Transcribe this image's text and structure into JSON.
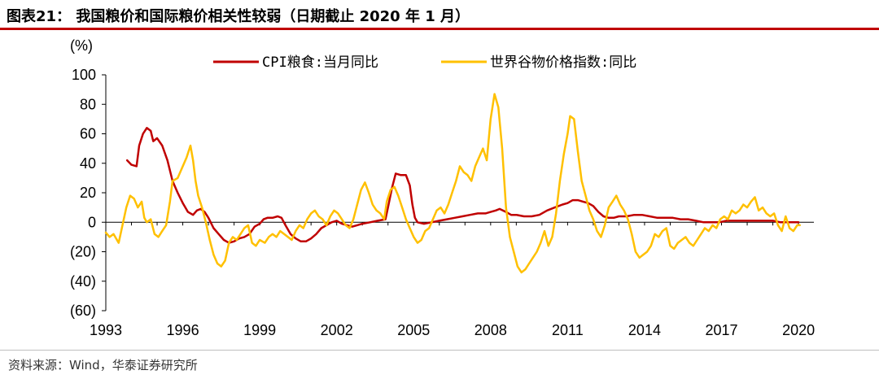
{
  "header": {
    "title": "图表21：  我国粮价和国际粮价相关性较弱（日期截止 2020 年 1 月）"
  },
  "source": {
    "text": "资料来源：Wind，华泰证券研究所"
  },
  "chart_data": {
    "type": "line",
    "unit_label": "(%)",
    "ylim": [
      -60,
      100
    ],
    "y_ticks": [
      -60,
      -40,
      -20,
      0,
      20,
      40,
      60,
      80,
      100
    ],
    "y_tick_labels": [
      "(60)",
      "(40)",
      "(20)",
      "0",
      "20",
      "40",
      "60",
      "80",
      "100"
    ],
    "x_ticks": [
      1993,
      1996,
      1999,
      2002,
      2005,
      2008,
      2011,
      2014,
      2017,
      2020
    ],
    "xlim": [
      1993,
      2020.6
    ],
    "legend_position": "top",
    "grid": false,
    "series": [
      {
        "name": "CPI粮食:当月同比",
        "color": "#c00000",
        "points": [
          [
            1993.83,
            42
          ],
          [
            1994.0,
            39
          ],
          [
            1994.2,
            38
          ],
          [
            1994.3,
            52
          ],
          [
            1994.45,
            60
          ],
          [
            1994.6,
            64
          ],
          [
            1994.75,
            62
          ],
          [
            1994.85,
            55
          ],
          [
            1995.0,
            57
          ],
          [
            1995.2,
            52
          ],
          [
            1995.4,
            42
          ],
          [
            1995.6,
            28
          ],
          [
            1995.8,
            20
          ],
          [
            1996.0,
            13
          ],
          [
            1996.2,
            7
          ],
          [
            1996.4,
            5
          ],
          [
            1996.55,
            8
          ],
          [
            1996.7,
            9
          ],
          [
            1996.85,
            7
          ],
          [
            1997.0,
            3
          ],
          [
            1997.2,
            -4
          ],
          [
            1997.4,
            -8
          ],
          [
            1997.6,
            -12
          ],
          [
            1997.8,
            -14
          ],
          [
            1998.0,
            -13
          ],
          [
            1998.2,
            -11
          ],
          [
            1998.4,
            -10
          ],
          [
            1998.6,
            -8
          ],
          [
            1998.8,
            -3
          ],
          [
            1999.0,
            -1
          ],
          [
            1999.15,
            2
          ],
          [
            1999.3,
            3
          ],
          [
            1999.5,
            3
          ],
          [
            1999.7,
            4
          ],
          [
            1999.85,
            3
          ],
          [
            2000.0,
            -2
          ],
          [
            2000.2,
            -8
          ],
          [
            2000.4,
            -11
          ],
          [
            2000.6,
            -13
          ],
          [
            2000.8,
            -13
          ],
          [
            2001.0,
            -11
          ],
          [
            2001.2,
            -8
          ],
          [
            2001.4,
            -4
          ],
          [
            2001.6,
            -2
          ],
          [
            2001.8,
            0
          ],
          [
            2002.0,
            1
          ],
          [
            2002.2,
            -1
          ],
          [
            2002.4,
            -2
          ],
          [
            2002.6,
            -3
          ],
          [
            2002.8,
            -2
          ],
          [
            2003.0,
            -1
          ],
          [
            2003.3,
            0
          ],
          [
            2003.6,
            1
          ],
          [
            2003.9,
            2
          ],
          [
            2004.0,
            10
          ],
          [
            2004.15,
            23
          ],
          [
            2004.3,
            33
          ],
          [
            2004.5,
            32
          ],
          [
            2004.7,
            32
          ],
          [
            2004.85,
            25
          ],
          [
            2004.95,
            12
          ],
          [
            2005.05,
            3
          ],
          [
            2005.15,
            0
          ],
          [
            2005.4,
            -1
          ],
          [
            2005.7,
            0
          ],
          [
            2006.0,
            1
          ],
          [
            2006.3,
            2
          ],
          [
            2006.6,
            3
          ],
          [
            2006.9,
            4
          ],
          [
            2007.2,
            5
          ],
          [
            2007.5,
            6
          ],
          [
            2007.8,
            6
          ],
          [
            2008.0,
            7
          ],
          [
            2008.2,
            8
          ],
          [
            2008.35,
            9
          ],
          [
            2008.6,
            7
          ],
          [
            2008.8,
            5
          ],
          [
            2009.0,
            5
          ],
          [
            2009.3,
            4
          ],
          [
            2009.6,
            4
          ],
          [
            2009.9,
            5
          ],
          [
            2010.2,
            8
          ],
          [
            2010.5,
            10
          ],
          [
            2010.8,
            12
          ],
          [
            2011.0,
            13
          ],
          [
            2011.2,
            15
          ],
          [
            2011.4,
            15
          ],
          [
            2011.6,
            14
          ],
          [
            2011.8,
            13
          ],
          [
            2012.0,
            11
          ],
          [
            2012.2,
            7
          ],
          [
            2012.4,
            4
          ],
          [
            2012.6,
            3
          ],
          [
            2012.8,
            3
          ],
          [
            2013.0,
            4
          ],
          [
            2013.3,
            4
          ],
          [
            2013.6,
            5
          ],
          [
            2013.9,
            5
          ],
          [
            2014.2,
            4
          ],
          [
            2014.5,
            3
          ],
          [
            2014.8,
            3
          ],
          [
            2015.1,
            3
          ],
          [
            2015.4,
            2
          ],
          [
            2015.7,
            2
          ],
          [
            2016.0,
            1
          ],
          [
            2016.3,
            0
          ],
          [
            2016.6,
            0
          ],
          [
            2016.9,
            0
          ],
          [
            2017.2,
            1
          ],
          [
            2017.5,
            1
          ],
          [
            2017.8,
            1
          ],
          [
            2018.1,
            1
          ],
          [
            2018.4,
            1
          ],
          [
            2018.7,
            1
          ],
          [
            2019.0,
            1
          ],
          [
            2019.3,
            0
          ],
          [
            2019.6,
            0
          ],
          [
            2019.9,
            0
          ],
          [
            2020.0,
            0
          ]
        ]
      },
      {
        "name": "世界谷物价格指数:同比",
        "color": "#ffc000",
        "points": [
          [
            1993.0,
            -7
          ],
          [
            1993.15,
            -10
          ],
          [
            1993.3,
            -8
          ],
          [
            1993.5,
            -14
          ],
          [
            1993.65,
            -2
          ],
          [
            1993.8,
            10
          ],
          [
            1993.95,
            18
          ],
          [
            1994.1,
            16
          ],
          [
            1994.25,
            10
          ],
          [
            1994.4,
            14
          ],
          [
            1994.5,
            3
          ],
          [
            1994.6,
            0
          ],
          [
            1994.75,
            2
          ],
          [
            1994.9,
            -8
          ],
          [
            1995.05,
            -10
          ],
          [
            1995.2,
            -6
          ],
          [
            1995.35,
            -2
          ],
          [
            1995.5,
            14
          ],
          [
            1995.6,
            28
          ],
          [
            1995.8,
            30
          ],
          [
            1996.0,
            38
          ],
          [
            1996.15,
            44
          ],
          [
            1996.3,
            52
          ],
          [
            1996.4,
            42
          ],
          [
            1996.5,
            28
          ],
          [
            1996.6,
            18
          ],
          [
            1996.75,
            10
          ],
          [
            1996.9,
            0
          ],
          [
            1997.05,
            -12
          ],
          [
            1997.2,
            -22
          ],
          [
            1997.35,
            -28
          ],
          [
            1997.5,
            -30
          ],
          [
            1997.65,
            -26
          ],
          [
            1997.8,
            -14
          ],
          [
            1997.95,
            -10
          ],
          [
            1998.1,
            -12
          ],
          [
            1998.25,
            -8
          ],
          [
            1998.4,
            -4
          ],
          [
            1998.55,
            -2
          ],
          [
            1998.7,
            -14
          ],
          [
            1998.85,
            -16
          ],
          [
            1999.0,
            -12
          ],
          [
            1999.2,
            -14
          ],
          [
            1999.35,
            -10
          ],
          [
            1999.5,
            -8
          ],
          [
            1999.65,
            -10
          ],
          [
            1999.8,
            -6
          ],
          [
            1999.95,
            -8
          ],
          [
            2000.1,
            -10
          ],
          [
            2000.25,
            -12
          ],
          [
            2000.4,
            -6
          ],
          [
            2000.55,
            -2
          ],
          [
            2000.7,
            -4
          ],
          [
            2000.85,
            2
          ],
          [
            2001.0,
            6
          ],
          [
            2001.15,
            8
          ],
          [
            2001.3,
            4
          ],
          [
            2001.45,
            2
          ],
          [
            2001.6,
            -2
          ],
          [
            2001.75,
            4
          ],
          [
            2001.9,
            8
          ],
          [
            2002.05,
            6
          ],
          [
            2002.2,
            2
          ],
          [
            2002.35,
            -2
          ],
          [
            2002.5,
            -4
          ],
          [
            2002.65,
            2
          ],
          [
            2002.8,
            12
          ],
          [
            2002.95,
            22
          ],
          [
            2003.1,
            27
          ],
          [
            2003.25,
            20
          ],
          [
            2003.4,
            12
          ],
          [
            2003.55,
            8
          ],
          [
            2003.7,
            6
          ],
          [
            2003.85,
            2
          ],
          [
            2003.95,
            14
          ],
          [
            2004.1,
            22
          ],
          [
            2004.25,
            24
          ],
          [
            2004.4,
            18
          ],
          [
            2004.55,
            10
          ],
          [
            2004.7,
            2
          ],
          [
            2004.85,
            -4
          ],
          [
            2005.0,
            -10
          ],
          [
            2005.15,
            -14
          ],
          [
            2005.3,
            -12
          ],
          [
            2005.45,
            -6
          ],
          [
            2005.6,
            -4
          ],
          [
            2005.75,
            2
          ],
          [
            2005.9,
            8
          ],
          [
            2006.05,
            10
          ],
          [
            2006.2,
            6
          ],
          [
            2006.35,
            12
          ],
          [
            2006.5,
            20
          ],
          [
            2006.65,
            28
          ],
          [
            2006.8,
            38
          ],
          [
            2006.95,
            34
          ],
          [
            2007.1,
            32
          ],
          [
            2007.25,
            28
          ],
          [
            2007.4,
            38
          ],
          [
            2007.55,
            44
          ],
          [
            2007.7,
            50
          ],
          [
            2007.85,
            42
          ],
          [
            2008.0,
            70
          ],
          [
            2008.15,
            87
          ],
          [
            2008.3,
            78
          ],
          [
            2008.45,
            50
          ],
          [
            2008.6,
            10
          ],
          [
            2008.75,
            -10
          ],
          [
            2008.9,
            -20
          ],
          [
            2009.05,
            -30
          ],
          [
            2009.2,
            -34
          ],
          [
            2009.35,
            -32
          ],
          [
            2009.5,
            -28
          ],
          [
            2009.65,
            -24
          ],
          [
            2009.8,
            -20
          ],
          [
            2009.95,
            -14
          ],
          [
            2010.1,
            -6
          ],
          [
            2010.25,
            -16
          ],
          [
            2010.4,
            -10
          ],
          [
            2010.55,
            6
          ],
          [
            2010.7,
            28
          ],
          [
            2010.85,
            46
          ],
          [
            2011.0,
            60
          ],
          [
            2011.1,
            72
          ],
          [
            2011.25,
            70
          ],
          [
            2011.4,
            48
          ],
          [
            2011.55,
            28
          ],
          [
            2011.7,
            18
          ],
          [
            2011.85,
            8
          ],
          [
            2012.0,
            2
          ],
          [
            2012.15,
            -6
          ],
          [
            2012.3,
            -10
          ],
          [
            2012.45,
            -2
          ],
          [
            2012.6,
            10
          ],
          [
            2012.75,
            14
          ],
          [
            2012.9,
            18
          ],
          [
            2013.05,
            12
          ],
          [
            2013.2,
            8
          ],
          [
            2013.35,
            2
          ],
          [
            2013.5,
            -8
          ],
          [
            2013.65,
            -20
          ],
          [
            2013.8,
            -24
          ],
          [
            2013.95,
            -22
          ],
          [
            2014.1,
            -20
          ],
          [
            2014.25,
            -16
          ],
          [
            2014.4,
            -8
          ],
          [
            2014.55,
            -10
          ],
          [
            2014.7,
            -6
          ],
          [
            2014.85,
            -4
          ],
          [
            2015.0,
            -16
          ],
          [
            2015.15,
            -18
          ],
          [
            2015.3,
            -14
          ],
          [
            2015.45,
            -12
          ],
          [
            2015.6,
            -10
          ],
          [
            2015.75,
            -14
          ],
          [
            2015.9,
            -16
          ],
          [
            2016.05,
            -12
          ],
          [
            2016.2,
            -8
          ],
          [
            2016.35,
            -4
          ],
          [
            2016.5,
            -6
          ],
          [
            2016.65,
            -2
          ],
          [
            2016.8,
            -4
          ],
          [
            2016.95,
            2
          ],
          [
            2017.1,
            4
          ],
          [
            2017.25,
            2
          ],
          [
            2017.4,
            8
          ],
          [
            2017.55,
            6
          ],
          [
            2017.7,
            8
          ],
          [
            2017.85,
            12
          ],
          [
            2018.0,
            10
          ],
          [
            2018.15,
            14
          ],
          [
            2018.3,
            17
          ],
          [
            2018.45,
            8
          ],
          [
            2018.6,
            10
          ],
          [
            2018.75,
            6
          ],
          [
            2018.9,
            4
          ],
          [
            2019.05,
            6
          ],
          [
            2019.2,
            -2
          ],
          [
            2019.35,
            -6
          ],
          [
            2019.5,
            4
          ],
          [
            2019.65,
            -4
          ],
          [
            2019.8,
            -6
          ],
          [
            2019.95,
            -2
          ],
          [
            2020.05,
            -2
          ]
        ]
      }
    ]
  }
}
